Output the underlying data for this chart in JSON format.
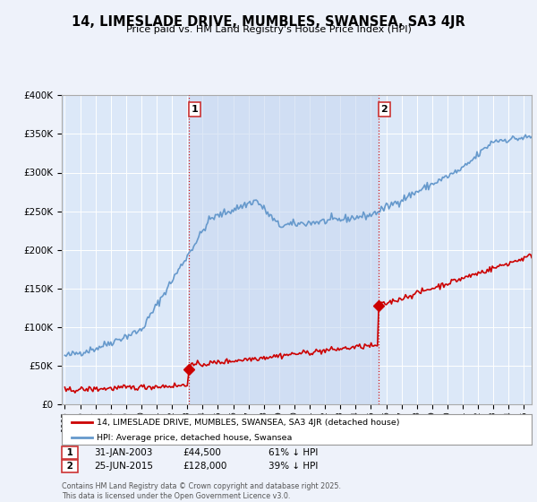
{
  "title": "14, LIMESLADE DRIVE, MUMBLES, SWANSEA, SA3 4JR",
  "subtitle": "Price paid vs. HM Land Registry's House Price Index (HPI)",
  "legend_line1": "14, LIMESLADE DRIVE, MUMBLES, SWANSEA, SA3 4JR (detached house)",
  "legend_line2": "HPI: Average price, detached house, Swansea",
  "sale1_date": "31-JAN-2003",
  "sale1_price": 44500,
  "sale1_pct": "61% ↓ HPI",
  "sale2_date": "25-JUN-2015",
  "sale2_price": 128000,
  "sale2_pct": "39% ↓ HPI",
  "ylim": [
    0,
    400000
  ],
  "xlim_start": 1994.8,
  "xlim_end": 2025.5,
  "background_color": "#eef2fa",
  "plot_bg_color": "#dce8f8",
  "fill_color": "#c8d8f0",
  "red_color": "#cc0000",
  "blue_color": "#6699cc",
  "grid_color": "#ffffff",
  "sale1_x": 2003.08,
  "sale2_x": 2015.48,
  "footer": "Contains HM Land Registry data © Crown copyright and database right 2025.\nThis data is licensed under the Open Government Licence v3.0."
}
